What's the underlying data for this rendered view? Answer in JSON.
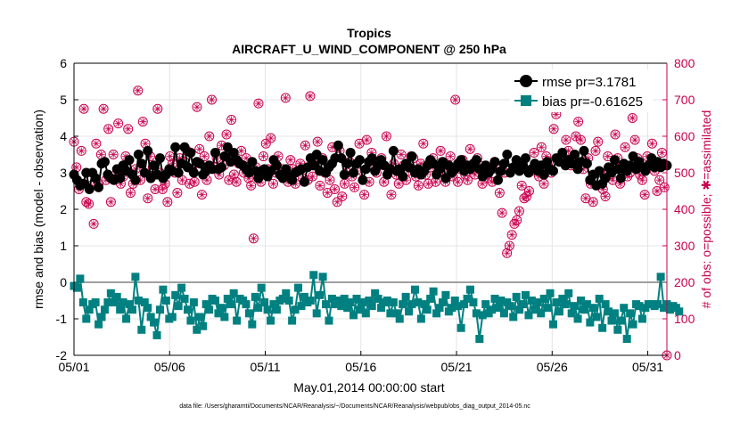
{
  "chart_data": {
    "type": "line",
    "title": "Tropics",
    "subtitle": "AIRCRAFT_U_WIND_COMPONENT @ 250 hPa",
    "xlabel": "May.01,2014 00:00:00 start",
    "ylabel": "rmse and bias (model - observation)",
    "y2label": "# of obs: o=possible; ✱=assimilated",
    "footnote": "data file: /Users/gharamti/Documents/NCAR/Reanalysis/~/Documents/NCAR/Reanalysis/webpub/obs_diag_output_2014-05.nc",
    "x_ticks": [
      "05/01",
      "05/06",
      "05/11",
      "05/16",
      "05/21",
      "05/26",
      "05/31"
    ],
    "xlim": [
      1,
      32
    ],
    "ylim": [
      -2,
      6
    ],
    "y_ticks": [
      "-2",
      "-1",
      "0",
      "1",
      "2",
      "3",
      "4",
      "5",
      "6"
    ],
    "y2lim": [
      0,
      800
    ],
    "y2_ticks": [
      "0",
      "100",
      "200",
      "300",
      "400",
      "500",
      "600",
      "700",
      "800"
    ],
    "grid": true,
    "legend": {
      "position": "top-right",
      "entries": [
        "rmse pr=3.1781",
        "bias pr=-0.61625"
      ]
    },
    "colors": {
      "rmse": "#000000",
      "bias": "#008080",
      "obs": "#c8004e",
      "zero_line": "#a0a0a0"
    },
    "series": [
      {
        "name": "rmse",
        "axis": "left",
        "values": [
          2.95,
          2.8,
          2.65,
          2.7,
          3.0,
          2.55,
          3.0,
          2.85,
          2.6,
          3.25,
          3.3,
          2.95,
          2.85,
          2.8,
          3.1,
          2.85,
          3.2,
          3.05,
          3.35,
          2.95,
          2.8,
          3.5,
          3.25,
          3.0,
          3.6,
          2.85,
          3.2,
          2.95,
          3.4,
          2.85,
          2.95,
          3.1,
          3.05,
          3.7,
          3.0,
          3.25,
          3.7,
          3.15,
          3.55,
          3.0,
          3.3,
          3.25,
          2.95,
          3.05,
          3.2,
          3.1,
          3.55,
          3.1,
          3.15,
          3.45,
          3.7,
          3.3,
          3.55,
          3.35,
          3.25,
          3.2,
          3.1,
          3.0,
          3.3,
          3.05,
          2.85,
          3.05,
          3.1,
          2.9,
          3.05,
          3.35,
          3.2,
          2.95,
          2.85,
          3.1,
          2.9,
          2.8,
          3.0,
          3.05,
          3.1,
          2.75,
          3.15,
          3.4,
          3.2,
          3.5,
          3.05,
          3.35,
          3.0,
          3.15,
          3.25,
          3.4,
          3.75,
          3.4,
          2.95,
          3.25,
          3.55,
          3.0,
          3.25,
          3.35,
          2.8,
          3.1,
          3.3,
          3.4,
          3.05,
          3.2,
          3.35,
          3.2,
          2.95,
          3.1,
          3.6,
          3.05,
          3.1,
          2.9,
          3.25,
          3.15,
          3.45,
          3.0,
          3.1,
          2.95,
          3.05,
          3.2,
          3.35,
          3.25,
          2.95,
          3.1,
          3.3,
          2.85,
          3.2,
          3.0,
          3.1,
          3.25,
          3.35,
          3.05,
          3.2,
          3.1,
          3.25,
          3.35,
          3.1,
          2.9,
          3.2,
          3.0,
          3.1,
          3.3,
          2.8,
          3.05,
          3.25,
          3.5,
          3.0,
          3.15,
          3.35,
          3.05,
          3.2,
          3.4,
          3.0,
          3.1,
          3.25,
          3.05,
          3.2,
          2.95,
          3.3,
          3.1,
          3.05,
          3.4,
          3.3,
          3.55,
          3.2,
          3.35,
          3.25,
          3.5,
          3.1,
          3.3,
          3.6,
          3.25,
          2.8,
          2.95,
          2.65,
          3.05,
          2.7,
          2.85,
          3.15,
          3.0,
          3.35,
          3.1,
          2.85,
          3.25,
          3.05,
          3.2,
          3.45,
          3.1,
          3.3,
          3.15,
          3.05,
          3.2,
          3.4,
          3.15,
          3.3,
          3.15,
          3.25,
          3.2
        ]
      },
      {
        "name": "bias",
        "axis": "left",
        "values": [
          -0.1,
          -0.15,
          0.1,
          -0.55,
          -1.0,
          -0.75,
          -0.6,
          -0.55,
          -1.15,
          -0.95,
          -0.75,
          -0.55,
          -0.3,
          -0.55,
          -0.4,
          -0.75,
          -0.55,
          -1.0,
          -0.6,
          -0.75,
          0.15,
          -0.5,
          -1.3,
          -0.55,
          -0.7,
          -0.95,
          -1.1,
          -1.45,
          -0.75,
          -0.2,
          -0.5,
          -1.0,
          -0.95,
          -0.35,
          -0.65,
          -0.15,
          -0.45,
          -0.75,
          -1.05,
          -0.55,
          -1.3,
          -0.95,
          -1.2,
          -0.6,
          -0.75,
          -0.45,
          -0.5,
          -0.85,
          -0.7,
          -0.95,
          -0.45,
          -0.6,
          -0.3,
          -1.05,
          -0.45,
          -0.5,
          -0.6,
          -0.85,
          -1.15,
          -0.4,
          -0.7,
          -0.15,
          -0.55,
          -0.75,
          -1.05,
          -0.6,
          -0.75,
          -0.5,
          -0.45,
          -0.3,
          -0.5,
          -1.05,
          -0.75,
          -0.15,
          -0.65,
          -0.4,
          -0.55,
          -0.5,
          0.2,
          -0.85,
          -0.35,
          0.15,
          -0.6,
          -1.05,
          -0.45,
          -0.6,
          -0.5,
          -0.65,
          -0.45,
          -0.7,
          -0.55,
          -0.9,
          -0.45,
          -0.75,
          -0.55,
          -0.85,
          -0.5,
          -0.65,
          -0.3,
          -0.45,
          -0.7,
          -0.55,
          -0.5,
          -0.85,
          -0.55,
          -0.85,
          -1.0,
          -0.6,
          -0.4,
          -0.8,
          -0.6,
          -0.2,
          -0.55,
          -1.0,
          -0.6,
          -0.75,
          -0.45,
          -0.25,
          -0.85,
          -0.7,
          -0.55,
          -0.35,
          -0.8,
          -0.7,
          -0.5,
          -0.65,
          -1.25,
          -0.6,
          -0.45,
          -0.2,
          -0.55,
          -0.85,
          -1.55,
          -0.9,
          -0.6,
          -0.85,
          -0.75,
          -0.45,
          -0.7,
          -0.5,
          -0.85,
          -0.55,
          -0.65,
          -0.95,
          -0.4,
          -0.75,
          -0.6,
          -0.35,
          -0.9,
          -0.5,
          -0.75,
          -0.55,
          -0.85,
          -0.45,
          -0.7,
          -0.3,
          -1.15,
          -0.55,
          -0.8,
          -0.45,
          -0.6,
          -0.3,
          -0.85,
          -0.65,
          -1.0,
          -0.5,
          -0.75,
          -0.6,
          -1.1,
          -0.7,
          -0.95,
          -0.45,
          -1.25,
          -0.6,
          -0.8,
          -1.05,
          -0.85,
          -1.3,
          -1.05,
          -0.7,
          -1.55,
          -0.85,
          -1.15,
          -0.6,
          -0.65,
          -1.0,
          -0.7,
          -0.6,
          -0.6,
          -0.65,
          -0.6,
          0.15,
          -0.7,
          -0.6,
          -0.75,
          -0.65,
          -0.7,
          -0.8
        ]
      }
    ],
    "obs_possible": [
      585,
      515,
      455,
      560,
      675,
      420,
      415,
      465,
      360,
      580,
      470,
      550,
      675,
      480,
      620,
      420,
      550,
      495,
      635,
      470,
      490,
      545,
      620,
      445,
      470,
      510,
      725,
      480,
      640,
      580,
      430,
      545,
      515,
      455,
      675,
      500,
      455,
      470,
      420,
      545,
      525,
      500,
      445,
      540,
      480,
      530,
      560,
      470,
      510,
      475,
      680,
      565,
      440,
      545,
      480,
      600,
      700,
      515,
      540,
      495,
      575,
      520,
      605,
      480,
      645,
      495,
      475,
      525,
      560,
      500,
      540,
      485,
      465,
      320,
      515,
      690,
      475,
      545,
      580,
      510,
      595,
      470,
      500,
      545,
      495,
      510,
      705,
      475,
      535,
      510,
      470,
      505,
      525,
      485,
      575,
      480,
      710,
      490,
      520,
      585,
      465,
      540,
      500,
      445,
      480,
      570,
      455,
      420,
      560,
      435,
      470,
      500,
      530,
      490,
      460,
      525,
      580,
      505,
      440,
      590,
      475,
      555,
      515,
      500,
      530,
      540,
      475,
      600,
      510,
      440,
      525,
      495,
      470,
      550,
      520,
      480,
      505,
      545,
      540,
      490,
      465,
      525,
      580,
      495,
      470,
      515,
      540,
      475,
      500,
      560,
      505,
      475,
      520,
      545,
      490,
      700,
      475,
      510,
      535,
      495,
      480,
      565,
      510,
      495,
      540,
      520,
      470,
      500,
      485,
      505,
      475,
      530,
      510,
      445,
      390,
      500,
      280,
      300,
      330,
      360,
      370,
      395,
      465,
      430,
      435,
      450,
      505,
      555,
      510,
      490,
      570,
      470,
      545,
      530,
      500,
      620,
      660,
      700,
      690,
      720,
      590,
      560,
      520,
      545,
      600,
      640,
      590,
      510,
      430,
      540,
      470,
      420,
      560,
      585,
      500,
      455,
      435,
      545,
      495,
      480,
      605,
      540,
      470,
      520,
      570,
      490,
      500,
      650,
      590,
      540,
      495,
      480,
      440,
      545,
      520,
      580,
      505,
      450,
      480,
      555,
      460,
      0
    ],
    "annotations": []
  }
}
